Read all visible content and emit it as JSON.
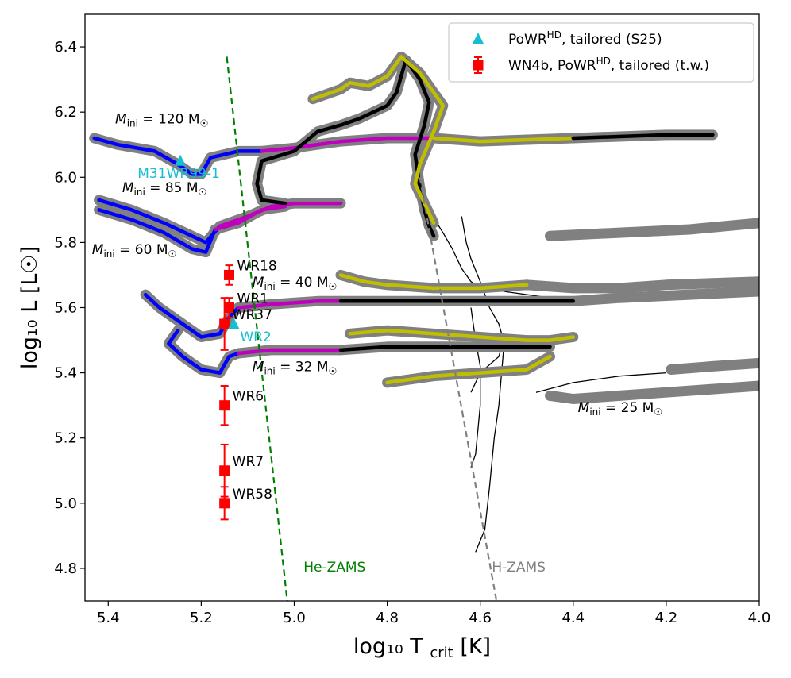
{
  "chart_data": {
    "type": "scatter",
    "xlabel": "log₁₀ T",
    "xlabel_sub": "crit",
    "xlabel_unit": "[K]",
    "ylabel": "log₁₀ L",
    "ylabel_unit": "[L☉]",
    "xlim": [
      5.45,
      4.0
    ],
    "ylim": [
      4.7,
      6.5
    ],
    "x_ticks": [
      5.4,
      5.2,
      5.0,
      4.8,
      4.6,
      4.4,
      4.2,
      4.0
    ],
    "x_tick_labels": [
      "5.4",
      "5.2",
      "5.0",
      "4.8",
      "4.6",
      "4.4",
      "4.2",
      "4.0"
    ],
    "y_ticks": [
      4.8,
      5.0,
      5.2,
      5.4,
      5.6,
      5.8,
      6.0,
      6.2,
      6.4
    ],
    "y_tick_labels": [
      "4.8",
      "5.0",
      "5.2",
      "5.4",
      "5.6",
      "5.8",
      "6.0",
      "6.2",
      "6.4"
    ],
    "legend": {
      "position": "top-right",
      "entries": [
        {
          "label": "PoWR",
          "sup": "HD",
          "rest": ", tailored (S25)",
          "marker": "triangle",
          "color": "#17becf"
        },
        {
          "label": "WN4b, PoWR",
          "sup": "HD",
          "rest": ", tailored (t.w.)",
          "marker": "square-errorbar",
          "color": "#ff0000"
        }
      ]
    },
    "colors": {
      "blue": "#0000ff",
      "magenta": "#bf00bf",
      "yellow": "#bfbf00",
      "black": "#000000",
      "gray": "#808080",
      "green": "#008000",
      "cyan": "#17becf",
      "red": "#ff0000"
    },
    "reference_lines": [
      {
        "name": "He-ZAMS",
        "color": "#008000",
        "x": [
          5.145,
          5.015
        ],
        "y": [
          6.37,
          4.7
        ]
      },
      {
        "name": "H-ZAMS",
        "color": "#808080",
        "x": [
          4.73,
          4.565
        ],
        "y": [
          6.0,
          4.7
        ]
      }
    ],
    "tw_stars": [
      {
        "name": "WR18",
        "x": 5.14,
        "y": 5.7,
        "yerr": 0.03
      },
      {
        "name": "WR1",
        "x": 5.14,
        "y": 5.6,
        "yerr": 0.03
      },
      {
        "name": "WR37",
        "x": 5.15,
        "y": 5.55,
        "yerr": 0.08
      },
      {
        "name": "WR6",
        "x": 5.15,
        "y": 5.3,
        "yerr": 0.06
      },
      {
        "name": "WR7",
        "x": 5.15,
        "y": 5.1,
        "yerr": 0.08
      },
      {
        "name": "WR58",
        "x": 5.15,
        "y": 5.0,
        "yerr": 0.05
      }
    ],
    "s25_stars": [
      {
        "name": "M31WR99-1",
        "x": 5.245,
        "y": 6.05
      },
      {
        "name": "WR2",
        "x": 5.13,
        "y": 5.55
      }
    ],
    "track_labels": [
      {
        "text": "M",
        "sub": "ini",
        "value": " = 120 M",
        "suffix": "☉",
        "x": 5.385,
        "y": 6.165
      },
      {
        "text": "M",
        "sub": "ini",
        "value": " = 85 M",
        "suffix": "☉",
        "x": 5.37,
        "y": 5.955
      },
      {
        "text": "M",
        "sub": "ini",
        "value": " = 60 M",
        "suffix": "☉",
        "x": 5.435,
        "y": 5.765
      },
      {
        "text": "M",
        "sub": "ini",
        "value": " = 40 M",
        "suffix": "☉",
        "x": 5.09,
        "y": 5.665
      },
      {
        "text": "M",
        "sub": "ini",
        "value": " = 32 M",
        "suffix": "☉",
        "x": 5.09,
        "y": 5.405
      },
      {
        "text": "M",
        "sub": "ini",
        "value": " = 25 M",
        "suffix": "☉",
        "x": 4.39,
        "y": 5.28
      }
    ],
    "tracks": [
      {
        "name": "Mini=120",
        "segments": [
          {
            "color": "blue",
            "points": [
              [
                5.43,
                6.12
              ],
              [
                5.38,
                6.1
              ],
              [
                5.3,
                6.08
              ],
              [
                5.25,
                6.04
              ],
              [
                5.22,
                6.01
              ],
              [
                5.2,
                6.01
              ],
              [
                5.18,
                6.06
              ],
              [
                5.12,
                6.08
              ],
              [
                5.07,
                6.08
              ]
            ]
          },
          {
            "color": "magenta",
            "points": [
              [
                5.07,
                6.08
              ],
              [
                5.0,
                6.09
              ],
              [
                4.9,
                6.11
              ],
              [
                4.8,
                6.12
              ],
              [
                4.7,
                6.12
              ]
            ]
          },
          {
            "color": "yellow",
            "points": [
              [
                4.7,
                6.12
              ],
              [
                4.6,
                6.11
              ],
              [
                4.4,
                6.12
              ]
            ]
          },
          {
            "color": "black",
            "points": [
              [
                4.4,
                6.12
              ],
              [
                4.2,
                6.13
              ],
              [
                4.1,
                6.13
              ]
            ]
          }
        ]
      },
      {
        "name": "Mini=85",
        "segments": [
          {
            "color": "blue",
            "points": [
              [
                5.42,
                5.93
              ],
              [
                5.35,
                5.9
              ],
              [
                5.28,
                5.86
              ],
              [
                5.22,
                5.82
              ],
              [
                5.19,
                5.8
              ],
              [
                5.16,
                5.85
              ]
            ]
          },
          {
            "color": "magenta",
            "points": [
              [
                5.16,
                5.85
              ],
              [
                5.1,
                5.88
              ],
              [
                5.05,
                5.91
              ],
              [
                5.0,
                5.92
              ],
              [
                4.9,
                5.92
              ]
            ]
          },
          {
            "color": "black",
            "points": [
              [
                5.02,
                5.92
              ],
              [
                5.07,
                5.93
              ],
              [
                5.08,
                5.98
              ],
              [
                5.07,
                6.05
              ],
              [
                5.0,
                6.08
              ],
              [
                4.95,
                6.14
              ],
              [
                4.9,
                6.16
              ],
              [
                4.86,
                6.18
              ],
              [
                4.8,
                6.22
              ],
              [
                4.78,
                6.26
              ],
              [
                4.76,
                6.36
              ],
              [
                4.73,
                6.3
              ],
              [
                4.71,
                6.23
              ],
              [
                4.72,
                6.16
              ],
              [
                4.74,
                6.07
              ],
              [
                4.73,
                5.97
              ],
              [
                4.72,
                5.9
              ],
              [
                4.71,
                5.85
              ],
              [
                4.7,
                5.82
              ]
            ]
          },
          {
            "color": "yellow",
            "points": [
              [
                4.96,
                6.24
              ],
              [
                4.9,
                6.27
              ],
              [
                4.88,
                6.29
              ],
              [
                4.84,
                6.28
              ],
              [
                4.8,
                6.31
              ],
              [
                4.77,
                6.37
              ],
              [
                4.73,
                6.32
              ],
              [
                4.7,
                6.26
              ],
              [
                4.68,
                6.22
              ],
              [
                4.7,
                6.14
              ],
              [
                4.73,
                6.04
              ],
              [
                4.74,
                5.98
              ],
              [
                4.72,
                5.92
              ],
              [
                4.7,
                5.86
              ]
            ]
          }
        ]
      },
      {
        "name": "Mini=60",
        "segments": [
          {
            "color": "blue",
            "points": [
              [
                5.42,
                5.9
              ],
              [
                5.35,
                5.87
              ],
              [
                5.28,
                5.83
              ],
              [
                5.22,
                5.78
              ],
              [
                5.19,
                5.77
              ],
              [
                5.17,
                5.84
              ]
            ]
          },
          {
            "color": "magenta",
            "points": [
              [
                5.17,
                5.84
              ],
              [
                5.12,
                5.86
              ],
              [
                5.07,
                5.9
              ],
              [
                5.02,
                5.91
              ]
            ]
          }
        ]
      },
      {
        "name": "Mini=40",
        "segments": [
          {
            "color": "blue",
            "points": [
              [
                5.32,
                5.64
              ],
              [
                5.29,
                5.6
              ],
              [
                5.24,
                5.55
              ],
              [
                5.2,
                5.51
              ],
              [
                5.16,
                5.52
              ],
              [
                5.14,
                5.57
              ],
              [
                5.12,
                5.6
              ]
            ]
          },
          {
            "color": "magenta",
            "points": [
              [
                5.12,
                5.6
              ],
              [
                5.05,
                5.61
              ],
              [
                4.95,
                5.62
              ],
              [
                4.9,
                5.62
              ]
            ]
          },
          {
            "color": "black",
            "points": [
              [
                4.9,
                5.62
              ],
              [
                4.8,
                5.62
              ],
              [
                4.7,
                5.62
              ],
              [
                4.6,
                5.62
              ],
              [
                4.5,
                5.62
              ],
              [
                4.4,
                5.62
              ]
            ]
          },
          {
            "color": "gray",
            "points": [
              [
                4.4,
                5.62
              ],
              [
                4.3,
                5.63
              ],
              [
                4.15,
                5.64
              ],
              [
                4.0,
                5.65
              ]
            ]
          },
          {
            "color": "yellow",
            "points": [
              [
                4.9,
                5.7
              ],
              [
                4.85,
                5.68
              ],
              [
                4.8,
                5.67
              ],
              [
                4.7,
                5.66
              ],
              [
                4.6,
                5.66
              ],
              [
                4.5,
                5.67
              ]
            ]
          },
          {
            "color": "gray",
            "points": [
              [
                4.5,
                5.67
              ],
              [
                4.4,
                5.66
              ],
              [
                4.3,
                5.66
              ],
              [
                4.2,
                5.67
              ],
              [
                4.0,
                5.68
              ]
            ]
          },
          {
            "color": "gray",
            "points": [
              [
                4.45,
                5.82
              ],
              [
                4.3,
                5.83
              ],
              [
                4.15,
                5.84
              ],
              [
                4.0,
                5.86
              ]
            ]
          }
        ]
      },
      {
        "name": "Mini=32",
        "segments": [
          {
            "color": "blue",
            "points": [
              [
                5.25,
                5.53
              ],
              [
                5.27,
                5.49
              ],
              [
                5.24,
                5.45
              ],
              [
                5.2,
                5.41
              ],
              [
                5.16,
                5.4
              ],
              [
                5.14,
                5.45
              ],
              [
                5.12,
                5.46
              ]
            ]
          },
          {
            "color": "magenta",
            "points": [
              [
                5.12,
                5.46
              ],
              [
                5.05,
                5.47
              ],
              [
                4.95,
                5.47
              ],
              [
                4.9,
                5.47
              ]
            ]
          },
          {
            "color": "black",
            "points": [
              [
                4.9,
                5.47
              ],
              [
                4.8,
                5.48
              ],
              [
                4.7,
                5.48
              ],
              [
                4.6,
                5.48
              ],
              [
                4.5,
                5.48
              ],
              [
                4.45,
                5.48
              ]
            ]
          },
          {
            "color": "yellow",
            "points": [
              [
                4.88,
                5.52
              ],
              [
                4.8,
                5.53
              ],
              [
                4.7,
                5.52
              ],
              [
                4.6,
                5.51
              ],
              [
                4.5,
                5.5
              ],
              [
                4.45,
                5.5
              ],
              [
                4.4,
                5.51
              ]
            ]
          },
          {
            "color": "yellow",
            "points": [
              [
                4.8,
                5.37
              ],
              [
                4.7,
                5.39
              ],
              [
                4.6,
                5.4
              ],
              [
                4.5,
                5.41
              ],
              [
                4.45,
                5.45
              ]
            ]
          },
          {
            "color": "gray",
            "points": [
              [
                4.45,
                5.33
              ],
              [
                4.4,
                5.32
              ],
              [
                4.3,
                5.33
              ],
              [
                4.2,
                5.34
              ],
              [
                4.1,
                5.35
              ],
              [
                4.0,
                5.36
              ]
            ]
          },
          {
            "color": "gray",
            "points": [
              [
                4.19,
                5.41
              ],
              [
                4.1,
                5.42
              ],
              [
                4.0,
                5.43
              ]
            ]
          }
        ]
      }
    ],
    "thin_tracks": [
      {
        "points": [
          [
            4.72,
            5.92
          ],
          [
            4.68,
            5.83
          ],
          [
            4.66,
            5.78
          ],
          [
            4.64,
            5.72
          ],
          [
            4.62,
            5.68
          ],
          [
            4.6,
            5.66
          ],
          [
            4.55,
            5.65
          ],
          [
            4.45,
            5.63
          ],
          [
            4.4,
            5.61
          ]
        ]
      },
      {
        "points": [
          [
            4.64,
            5.88
          ],
          [
            4.63,
            5.8
          ],
          [
            4.62,
            5.75
          ],
          [
            4.6,
            5.68
          ],
          [
            4.58,
            5.6
          ],
          [
            4.56,
            5.55
          ],
          [
            4.55,
            5.5
          ],
          [
            4.56,
            5.45
          ],
          [
            4.6,
            5.4
          ],
          [
            4.62,
            5.34
          ]
        ]
      },
      {
        "points": [
          [
            4.62,
            5.6
          ],
          [
            4.61,
            5.5
          ],
          [
            4.6,
            5.42
          ],
          [
            4.6,
            5.3
          ],
          [
            4.61,
            5.15
          ],
          [
            4.62,
            5.11
          ]
        ]
      },
      {
        "points": [
          [
            4.55,
            5.47
          ],
          [
            4.56,
            5.3
          ],
          [
            4.57,
            5.2
          ],
          [
            4.58,
            5.05
          ],
          [
            4.59,
            4.92
          ],
          [
            4.61,
            4.85
          ]
        ]
      },
      {
        "points": [
          [
            4.48,
            5.34
          ],
          [
            4.4,
            5.37
          ],
          [
            4.3,
            5.39
          ],
          [
            4.2,
            5.4
          ]
        ]
      }
    ]
  }
}
